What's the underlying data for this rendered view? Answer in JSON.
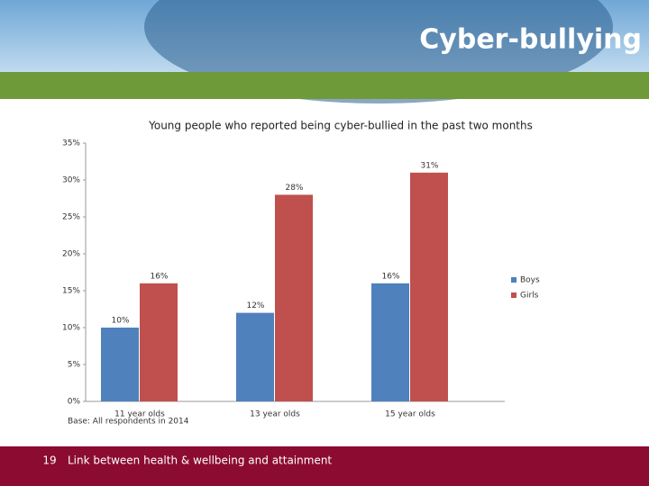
{
  "header": {
    "title": "Cyber-bullying"
  },
  "chart_data": {
    "type": "bar",
    "title": "Young people who reported being cyber-bullied in the past two months",
    "note": "Base: All respondents in 2014",
    "categories": [
      "11 year olds",
      "13 year olds",
      "15 year olds"
    ],
    "series": [
      {
        "name": "Boys",
        "color": "#4f81bd",
        "values": [
          10,
          12,
          16
        ],
        "value_labels": [
          "10%",
          "12%",
          "16%"
        ]
      },
      {
        "name": "Girls",
        "color": "#c0504d",
        "values": [
          16,
          28,
          31
        ],
        "value_labels": [
          "16%",
          "28%",
          "31%"
        ]
      }
    ],
    "ylim": [
      0,
      35
    ],
    "yticks": [
      {
        "value": 0,
        "label": "0%"
      },
      {
        "value": 5,
        "label": "5%"
      },
      {
        "value": 10,
        "label": "10%"
      },
      {
        "value": 15,
        "label": "15%"
      },
      {
        "value": 20,
        "label": "20%"
      },
      {
        "value": 25,
        "label": "25%"
      },
      {
        "value": 30,
        "label": "30%"
      },
      {
        "value": 35,
        "label": "35%"
      }
    ],
    "grid": false,
    "legend": "right"
  },
  "footer": {
    "page_number": 19,
    "text": "Link between health & wellbeing and attainment"
  }
}
